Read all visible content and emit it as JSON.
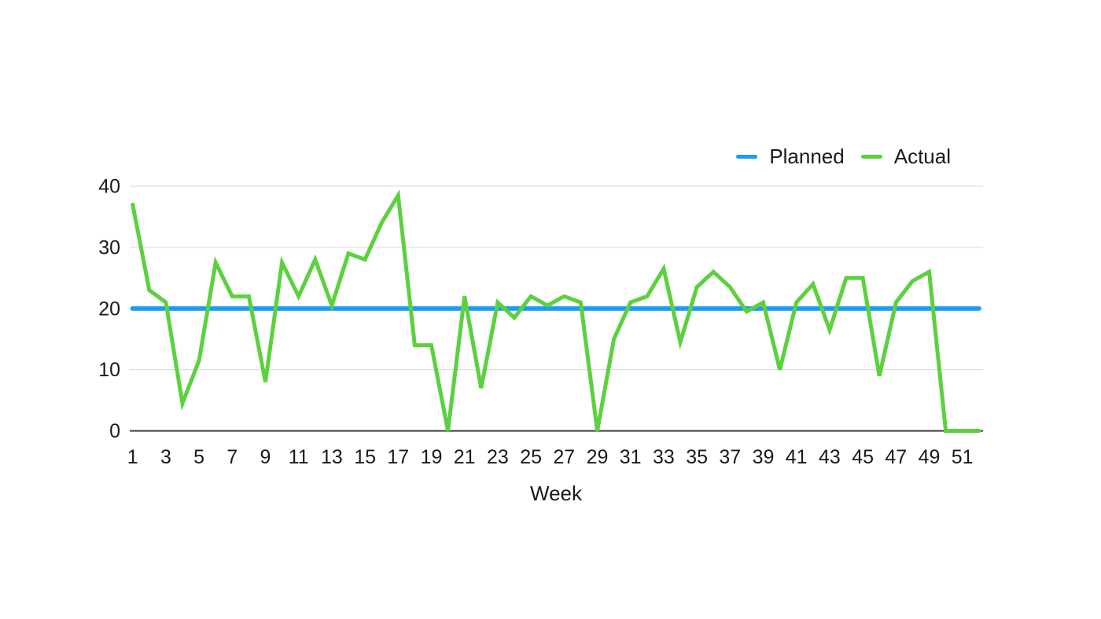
{
  "chart_data": {
    "type": "line",
    "title": "",
    "xlabel": "Week",
    "ylabel": "",
    "x": [
      1,
      2,
      3,
      4,
      5,
      6,
      7,
      8,
      9,
      10,
      11,
      12,
      13,
      14,
      15,
      16,
      17,
      18,
      19,
      20,
      21,
      22,
      23,
      24,
      25,
      26,
      27,
      28,
      29,
      30,
      31,
      32,
      33,
      34,
      35,
      36,
      37,
      38,
      39,
      40,
      41,
      42,
      43,
      44,
      45,
      46,
      47,
      48,
      49,
      50,
      51,
      52
    ],
    "x_tick_labels": [
      "1",
      "3",
      "5",
      "7",
      "9",
      "11",
      "13",
      "15",
      "17",
      "19",
      "21",
      "23",
      "25",
      "27",
      "29",
      "31",
      "33",
      "35",
      "37",
      "39",
      "41",
      "43",
      "45",
      "47",
      "49",
      "51"
    ],
    "y_ticks": [
      0,
      10,
      20,
      30,
      40
    ],
    "ylim": [
      0,
      40
    ],
    "grid": "horizontal",
    "legend_position": "top-right",
    "colors": {
      "grid_line": "#D8D8D8",
      "axis_line": "#4D4D4F",
      "text": "#1A1A1A",
      "background": "#FFFFFF"
    },
    "series": [
      {
        "name": "Planned",
        "color": "#1C9DF2",
        "values": [
          20,
          20,
          20,
          20,
          20,
          20,
          20,
          20,
          20,
          20,
          20,
          20,
          20,
          20,
          20,
          20,
          20,
          20,
          20,
          20,
          20,
          20,
          20,
          20,
          20,
          20,
          20,
          20,
          20,
          20,
          20,
          20,
          20,
          20,
          20,
          20,
          20,
          20,
          20,
          20,
          20,
          20,
          20,
          20,
          20,
          20,
          20,
          20,
          20,
          20,
          20,
          20
        ]
      },
      {
        "name": "Actual",
        "color": "#5BD13E",
        "values": [
          37,
          23,
          21,
          4.5,
          11.5,
          27.5,
          22,
          22,
          8,
          27.5,
          22,
          28,
          20.5,
          29,
          28,
          34,
          38.5,
          14,
          14,
          0,
          22,
          7,
          21,
          18.5,
          22,
          20.5,
          22,
          21,
          0,
          15,
          21,
          22,
          26.5,
          14.5,
          23.5,
          26,
          23.5,
          19.5,
          21,
          10,
          21,
          24,
          16.5,
          25,
          25,
          9,
          21,
          24.5,
          26,
          0,
          0,
          0
        ]
      }
    ]
  }
}
